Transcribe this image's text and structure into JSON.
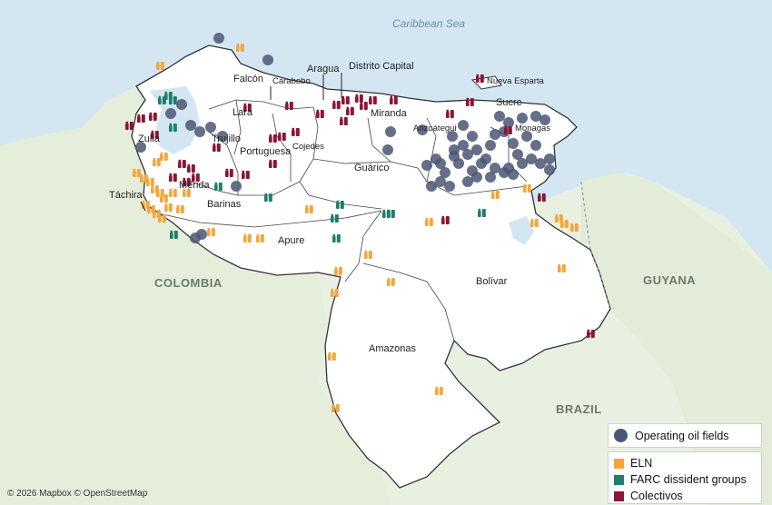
{
  "labels": {
    "sea": "Caribbean Sea",
    "colombia": "COLOMBIA",
    "guyana": "GUYANA",
    "brazil": "BRAZIL",
    "states": {
      "falcon": "Falcón",
      "aragua": "Aragua",
      "distrito_capital": "Distrito Capital",
      "carabobo": "Carabobo",
      "nueva_esparta": "Nueva Esparta",
      "lara": "Lara",
      "miranda": "Miranda",
      "sucre": "Sucre",
      "zulia": "Zulia",
      "trujillo": "Trujillo",
      "anzoategui": "Anzoátegui",
      "monagas": "Monagas",
      "portuguesa": "Portuguesa",
      "cojedes": "Cojedes",
      "guarico": "Guárico",
      "merida": "Mérida",
      "tachira": "Táchira",
      "barinas": "Barinas",
      "apure": "Apure",
      "bolivar": "Bolívar",
      "amazonas": "Amazonas"
    }
  },
  "legend": {
    "oil": "Operating oil fields",
    "eln": "ELN",
    "farc": "FARC dissident groups",
    "colectivos": "Colectivos"
  },
  "colors": {
    "oil": "#4a5673",
    "eln": "#f5a63a",
    "farc": "#1f7d6b",
    "colectivos": "#8c1436",
    "sea": "#d4e6f1",
    "land": "#e8f0e2",
    "venezuela": "#ffffff"
  },
  "credit": "© 2026 Mapbox © OpenStreetMap"
}
